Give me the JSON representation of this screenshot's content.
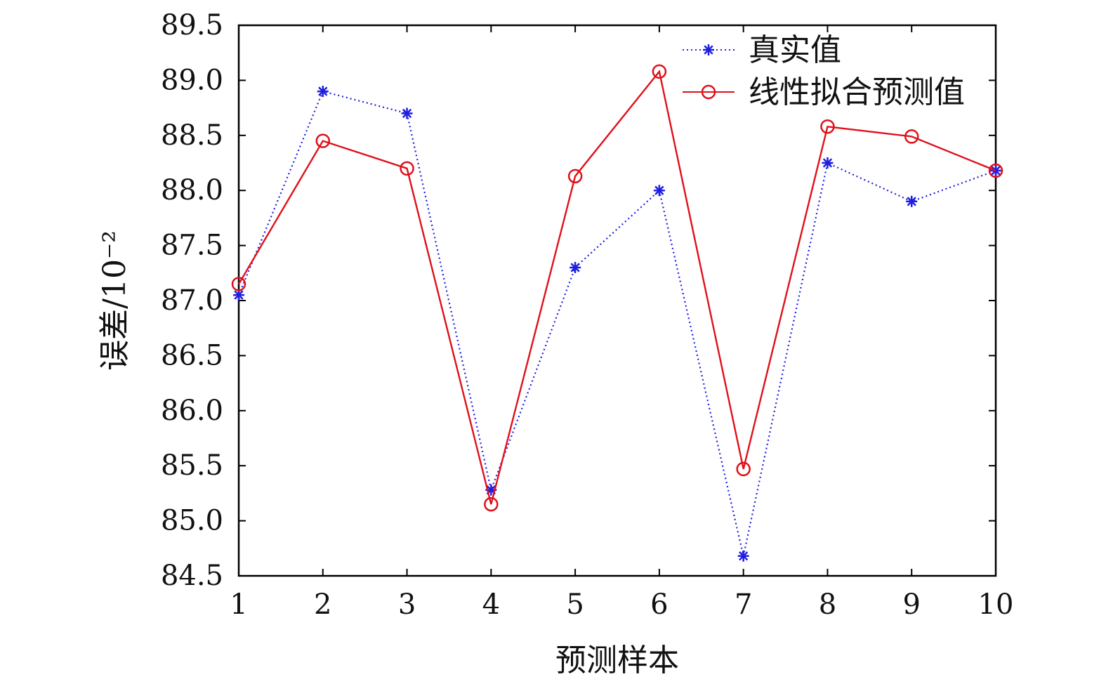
{
  "chart_data": {
    "type": "line",
    "xlabel": "预测样本",
    "ylabel": "误差/10⁻²",
    "x": [
      1,
      2,
      3,
      4,
      5,
      6,
      7,
      8,
      9,
      10
    ],
    "xlim": [
      1,
      10
    ],
    "ylim": [
      84.5,
      89.5
    ],
    "x_ticks": [
      "1",
      "2",
      "3",
      "4",
      "5",
      "6",
      "7",
      "8",
      "9",
      "10"
    ],
    "y_ticks": [
      "84.5",
      "85.0",
      "85.5",
      "86.0",
      "86.5",
      "87.0",
      "87.5",
      "88.0",
      "88.5",
      "89.0",
      "89.5"
    ],
    "grid": false,
    "legend_position": "top-right",
    "series": [
      {
        "name": "真实值",
        "color": "#1f1fe0",
        "line_style": "dotted",
        "marker": "asterisk",
        "values": [
          87.05,
          88.9,
          88.7,
          85.28,
          87.3,
          88.0,
          84.68,
          88.25,
          87.9,
          88.18
        ]
      },
      {
        "name": "线性拟合预测值",
        "color": "#e0101a",
        "line_style": "solid",
        "marker": "circle",
        "values": [
          87.15,
          88.45,
          88.2,
          85.15,
          88.13,
          89.08,
          85.47,
          88.58,
          88.49,
          88.18
        ]
      }
    ]
  }
}
